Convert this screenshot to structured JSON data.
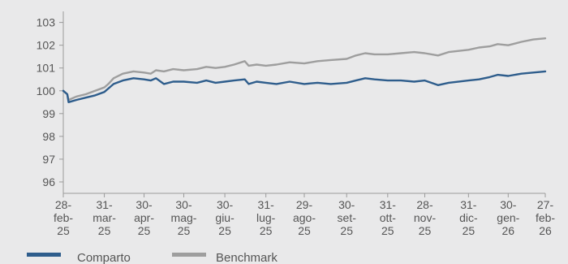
{
  "chart_data": {
    "type": "line",
    "title": "",
    "xlabel": "",
    "ylabel": "",
    "ylim": [
      95.5,
      103.2
    ],
    "yticks": [
      96,
      97,
      98,
      99,
      100,
      101,
      102,
      103
    ],
    "grid": false,
    "legend_position": "bottom-left",
    "x_ticks": [
      {
        "date": "2025-02-28",
        "lines": [
          "28-",
          "feb-",
          "25"
        ]
      },
      {
        "date": "2025-03-31",
        "lines": [
          "31-",
          "mar-",
          "25"
        ]
      },
      {
        "date": "2025-04-30",
        "lines": [
          "30-",
          "apr-",
          "25"
        ]
      },
      {
        "date": "2025-05-30",
        "lines": [
          "30-",
          "mag-",
          "25"
        ]
      },
      {
        "date": "2025-06-30",
        "lines": [
          "30-",
          "giu-",
          "25"
        ]
      },
      {
        "date": "2025-07-31",
        "lines": [
          "31-",
          "lug-",
          "25"
        ]
      },
      {
        "date": "2025-08-29",
        "lines": [
          "29-",
          "ago-",
          "25"
        ]
      },
      {
        "date": "2025-09-30",
        "lines": [
          "30-",
          "set-",
          "25"
        ]
      },
      {
        "date": "2025-10-31",
        "lines": [
          "31-",
          "ott-",
          "25"
        ]
      },
      {
        "date": "2025-11-28",
        "lines": [
          "28-",
          "nov-",
          "25"
        ]
      },
      {
        "date": "2025-12-31",
        "lines": [
          "31-",
          "dic-",
          "25"
        ]
      },
      {
        "date": "2026-01-30",
        "lines": [
          "30-",
          "gen-",
          "26"
        ]
      },
      {
        "date": "2026-02-27",
        "lines": [
          "27-",
          "feb-",
          "26"
        ]
      }
    ],
    "series": [
      {
        "name": "Comparto",
        "color": "#2e5d8c",
        "points": [
          [
            "2025-02-28",
            100.0
          ],
          [
            "2025-03-03",
            99.85
          ],
          [
            "2025-03-04",
            99.5
          ],
          [
            "2025-03-10",
            99.6
          ],
          [
            "2025-03-17",
            99.7
          ],
          [
            "2025-03-24",
            99.8
          ],
          [
            "2025-03-31",
            99.95
          ],
          [
            "2025-04-03",
            100.1
          ],
          [
            "2025-04-07",
            100.3
          ],
          [
            "2025-04-14",
            100.45
          ],
          [
            "2025-04-22",
            100.55
          ],
          [
            "2025-04-30",
            100.5
          ],
          [
            "2025-05-05",
            100.45
          ],
          [
            "2025-05-09",
            100.55
          ],
          [
            "2025-05-15",
            100.3
          ],
          [
            "2025-05-22",
            100.4
          ],
          [
            "2025-05-30",
            100.4
          ],
          [
            "2025-06-09",
            100.35
          ],
          [
            "2025-06-16",
            100.45
          ],
          [
            "2025-06-23",
            100.35
          ],
          [
            "2025-06-30",
            100.4
          ],
          [
            "2025-07-07",
            100.45
          ],
          [
            "2025-07-15",
            100.5
          ],
          [
            "2025-07-18",
            100.3
          ],
          [
            "2025-07-24",
            100.4
          ],
          [
            "2025-07-31",
            100.35
          ],
          [
            "2025-08-08",
            100.3
          ],
          [
            "2025-08-18",
            100.4
          ],
          [
            "2025-08-29",
            100.3
          ],
          [
            "2025-09-08",
            100.35
          ],
          [
            "2025-09-18",
            100.3
          ],
          [
            "2025-09-30",
            100.35
          ],
          [
            "2025-10-07",
            100.45
          ],
          [
            "2025-10-14",
            100.55
          ],
          [
            "2025-10-21",
            100.5
          ],
          [
            "2025-10-31",
            100.45
          ],
          [
            "2025-11-10",
            100.45
          ],
          [
            "2025-11-20",
            100.4
          ],
          [
            "2025-11-28",
            100.45
          ],
          [
            "2025-12-08",
            100.25
          ],
          [
            "2025-12-16",
            100.35
          ],
          [
            "2025-12-31",
            100.45
          ],
          [
            "2026-01-08",
            100.5
          ],
          [
            "2026-01-16",
            100.6
          ],
          [
            "2026-01-22",
            100.7
          ],
          [
            "2026-01-30",
            100.65
          ],
          [
            "2026-02-09",
            100.75
          ],
          [
            "2026-02-18",
            100.8
          ],
          [
            "2026-02-27",
            100.85
          ]
        ]
      },
      {
        "name": "Benchmark",
        "color": "#9e9e9e",
        "points": [
          [
            "2025-02-28",
            100.0
          ],
          [
            "2025-03-03",
            99.85
          ],
          [
            "2025-03-04",
            99.6
          ],
          [
            "2025-03-10",
            99.75
          ],
          [
            "2025-03-17",
            99.85
          ],
          [
            "2025-03-24",
            100.0
          ],
          [
            "2025-03-31",
            100.15
          ],
          [
            "2025-04-03",
            100.3
          ],
          [
            "2025-04-07",
            100.55
          ],
          [
            "2025-04-14",
            100.75
          ],
          [
            "2025-04-22",
            100.85
          ],
          [
            "2025-04-30",
            100.8
          ],
          [
            "2025-05-05",
            100.75
          ],
          [
            "2025-05-09",
            100.9
          ],
          [
            "2025-05-15",
            100.85
          ],
          [
            "2025-05-22",
            100.95
          ],
          [
            "2025-05-30",
            100.9
          ],
          [
            "2025-06-09",
            100.95
          ],
          [
            "2025-06-16",
            101.05
          ],
          [
            "2025-06-23",
            101.0
          ],
          [
            "2025-06-30",
            101.05
          ],
          [
            "2025-07-07",
            101.15
          ],
          [
            "2025-07-15",
            101.3
          ],
          [
            "2025-07-18",
            101.1
          ],
          [
            "2025-07-24",
            101.15
          ],
          [
            "2025-07-31",
            101.1
          ],
          [
            "2025-08-08",
            101.15
          ],
          [
            "2025-08-18",
            101.25
          ],
          [
            "2025-08-29",
            101.2
          ],
          [
            "2025-09-08",
            101.3
          ],
          [
            "2025-09-18",
            101.35
          ],
          [
            "2025-09-30",
            101.4
          ],
          [
            "2025-10-07",
            101.55
          ],
          [
            "2025-10-14",
            101.65
          ],
          [
            "2025-10-21",
            101.6
          ],
          [
            "2025-10-31",
            101.6
          ],
          [
            "2025-11-10",
            101.65
          ],
          [
            "2025-11-20",
            101.7
          ],
          [
            "2025-11-28",
            101.65
          ],
          [
            "2025-12-08",
            101.55
          ],
          [
            "2025-12-16",
            101.7
          ],
          [
            "2025-12-31",
            101.8
          ],
          [
            "2026-01-08",
            101.9
          ],
          [
            "2026-01-16",
            101.95
          ],
          [
            "2026-01-22",
            102.05
          ],
          [
            "2026-01-30",
            102.0
          ],
          [
            "2026-02-09",
            102.15
          ],
          [
            "2026-02-18",
            102.25
          ],
          [
            "2026-02-27",
            102.3
          ]
        ]
      }
    ]
  }
}
